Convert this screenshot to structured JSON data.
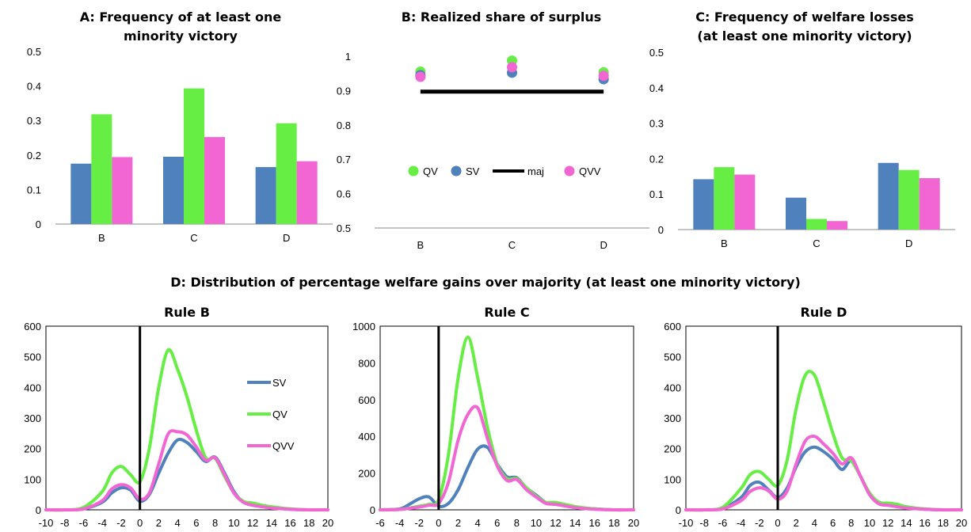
{
  "figure_title": "D: Distribution of percentage welfare gains over majority (at least one minority victory)",
  "colors": {
    "SV": "#4F81BD",
    "QV": "#66EE44",
    "QVV": "#F266D4",
    "maj": "#000000"
  },
  "chart_data": [
    {
      "id": "A",
      "type": "bar",
      "title_lines": [
        "A: Frequency of at least one",
        "minority victory"
      ],
      "categories": [
        "B",
        "C",
        "D"
      ],
      "series": [
        {
          "key": "SV",
          "values": [
            0.175,
            0.195,
            0.165
          ]
        },
        {
          "key": "QV",
          "values": [
            0.318,
            0.393,
            0.292
          ]
        },
        {
          "key": "QVV",
          "values": [
            0.194,
            0.252,
            0.182
          ]
        }
      ],
      "ylim": [
        0,
        0.5
      ],
      "yticks": [
        "0",
        "0.1",
        "0.2",
        "0.3",
        "0.4",
        "0.5"
      ],
      "grid": false
    },
    {
      "id": "B",
      "type": "scatter",
      "title_lines": [
        "B: Realized share of surplus"
      ],
      "categories": [
        "B",
        "C",
        "D"
      ],
      "series": [
        {
          "key": "QV",
          "name": "QV",
          "values": [
            0.955,
            0.987,
            0.953
          ]
        },
        {
          "key": "SV",
          "name": "SV",
          "values": [
            0.945,
            0.952,
            0.933
          ]
        },
        {
          "key": "QVV",
          "name": "QVV",
          "values": [
            0.94,
            0.968,
            0.943
          ]
        }
      ],
      "line_series": {
        "key": "maj",
        "name": "maj",
        "values": [
          0.897,
          0.897,
          0.897
        ]
      },
      "ylim": [
        0.5,
        1
      ],
      "yticks": [
        "0.5",
        "0.6",
        "0.7",
        "0.8",
        "0.9",
        "1"
      ],
      "legend_position": "center"
    },
    {
      "id": "C",
      "type": "bar",
      "title_lines": [
        "C: Frequency of welfare losses",
        "(at least one minority victory)"
      ],
      "categories": [
        "B",
        "C",
        "D"
      ],
      "series": [
        {
          "key": "SV",
          "values": [
            0.142,
            0.09,
            0.188
          ]
        },
        {
          "key": "QV",
          "values": [
            0.176,
            0.03,
            0.168
          ]
        },
        {
          "key": "QVV",
          "values": [
            0.155,
            0.024,
            0.145
          ]
        }
      ],
      "ylim": [
        0,
        0.5
      ],
      "yticks": [
        "0",
        "0.1",
        "0.2",
        "0.3",
        "0.4",
        "0.5"
      ],
      "grid": false
    },
    {
      "id": "D-B",
      "type": "line",
      "title_lines": [
        "Rule B"
      ],
      "xlim": [
        -10,
        20
      ],
      "xticks": [
        "-10",
        "-8",
        "-6",
        "-4",
        "-2",
        "0",
        "2",
        "4",
        "6",
        "8",
        "10",
        "12",
        "14",
        "16",
        "18",
        "20"
      ],
      "ylim": [
        0,
        600
      ],
      "yticks": [
        "0",
        "100",
        "200",
        "300",
        "400",
        "500",
        "600"
      ],
      "vline_x": 0,
      "legend_position": "right-center",
      "series": [
        {
          "key": "SV",
          "name": "SV",
          "x": [
            -10,
            -8,
            -6,
            -4,
            -3,
            -2,
            -1,
            0,
            1,
            2,
            3,
            4,
            5,
            6,
            7,
            8,
            9,
            10,
            11,
            12,
            13,
            14,
            16,
            18,
            20
          ],
          "y": [
            0,
            0,
            3,
            25,
            55,
            72,
            65,
            28,
            50,
            120,
            185,
            228,
            220,
            190,
            158,
            172,
            120,
            60,
            25,
            15,
            12,
            8,
            2,
            0,
            0
          ]
        },
        {
          "key": "QV",
          "name": "QV",
          "x": [
            -10,
            -8,
            -6,
            -4,
            -3,
            -2,
            -1,
            0,
            1,
            2,
            3,
            4,
            5,
            6,
            7,
            8,
            9,
            10,
            11,
            12,
            13,
            14,
            16,
            18,
            20
          ],
          "y": [
            0,
            0,
            8,
            60,
            120,
            142,
            115,
            92,
            200,
            400,
            522,
            460,
            370,
            260,
            170,
            168,
            110,
            55,
            28,
            22,
            15,
            10,
            3,
            0,
            0
          ]
        },
        {
          "key": "QVV",
          "name": "QVV",
          "x": [
            -10,
            -8,
            -6,
            -4,
            -3,
            -2,
            -1,
            0,
            1,
            2,
            3,
            4,
            5,
            6,
            7,
            8,
            9,
            10,
            11,
            12,
            13,
            14,
            16,
            18,
            20
          ],
          "y": [
            0,
            0,
            3,
            30,
            68,
            82,
            72,
            35,
            55,
            150,
            248,
            255,
            245,
            205,
            162,
            170,
            115,
            55,
            25,
            15,
            10,
            6,
            2,
            0,
            0
          ]
        }
      ]
    },
    {
      "id": "D-C",
      "type": "line",
      "title_lines": [
        "Rule C"
      ],
      "xlim": [
        -6,
        20
      ],
      "xticks": [
        "-6",
        "-4",
        "-2",
        "0",
        "2",
        "4",
        "6",
        "8",
        "10",
        "12",
        "14",
        "16",
        "18",
        "20"
      ],
      "ylim": [
        0,
        1000
      ],
      "yticks": [
        "0",
        "200",
        "400",
        "600",
        "800",
        "1000"
      ],
      "vline_x": 0,
      "series": [
        {
          "key": "SV",
          "name": "SV",
          "x": [
            -6,
            -4,
            -3,
            -2,
            -1,
            0,
            1,
            2,
            3,
            4,
            5,
            6,
            7,
            8,
            9,
            10,
            11,
            12,
            14,
            16,
            18,
            20
          ],
          "y": [
            0,
            5,
            30,
            60,
            70,
            20,
            35,
            110,
            230,
            330,
            340,
            250,
            180,
            175,
            120,
            80,
            40,
            30,
            15,
            5,
            0,
            0
          ]
        },
        {
          "key": "QV",
          "name": "QV",
          "x": [
            -6,
            -4,
            -3,
            -2,
            -1,
            0,
            1,
            2,
            3,
            4,
            5,
            6,
            7,
            8,
            9,
            10,
            11,
            12,
            14,
            16,
            18,
            20
          ],
          "y": [
            0,
            2,
            10,
            20,
            30,
            55,
            300,
            720,
            940,
            720,
            450,
            250,
            170,
            170,
            120,
            75,
            40,
            40,
            18,
            5,
            0,
            0
          ]
        },
        {
          "key": "QVV",
          "name": "QVV",
          "x": [
            -6,
            -4,
            -3,
            -2,
            -1,
            0,
            1,
            2,
            3,
            4,
            5,
            6,
            7,
            8,
            9,
            10,
            11,
            12,
            14,
            16,
            18,
            20
          ],
          "y": [
            0,
            2,
            8,
            15,
            25,
            35,
            150,
            380,
            520,
            555,
            390,
            240,
            160,
            165,
            110,
            70,
            35,
            30,
            12,
            3,
            0,
            0
          ]
        }
      ]
    },
    {
      "id": "D-D",
      "type": "line",
      "title_lines": [
        "Rule D"
      ],
      "xlim": [
        -10,
        20
      ],
      "xticks": [
        "-10",
        "-8",
        "-6",
        "-4",
        "-2",
        "0",
        "2",
        "4",
        "6",
        "8",
        "10",
        "12",
        "14",
        "16",
        "18",
        "20"
      ],
      "ylim": [
        0,
        600
      ],
      "yticks": [
        "0",
        "100",
        "200",
        "300",
        "400",
        "500",
        "600"
      ],
      "vline_x": 0,
      "series": [
        {
          "key": "SV",
          "name": "SV",
          "x": [
            -10,
            -8,
            -6,
            -4,
            -3,
            -2,
            -1,
            0,
            1,
            2,
            3,
            4,
            5,
            6,
            7,
            8,
            9,
            10,
            11,
            12,
            13,
            14,
            16,
            18,
            20
          ],
          "y": [
            0,
            0,
            5,
            40,
            80,
            90,
            65,
            40,
            70,
            140,
            190,
            205,
            190,
            165,
            132,
            160,
            110,
            50,
            20,
            15,
            12,
            8,
            2,
            0,
            0
          ]
        },
        {
          "key": "QV",
          "name": "QV",
          "x": [
            -10,
            -8,
            -6,
            -4,
            -3,
            -2,
            -1,
            0,
            1,
            2,
            3,
            4,
            5,
            6,
            7,
            8,
            9,
            10,
            11,
            12,
            13,
            14,
            16,
            18,
            20
          ],
          "y": [
            0,
            0,
            8,
            70,
            115,
            125,
            100,
            80,
            160,
            330,
            440,
            440,
            350,
            250,
            170,
            160,
            110,
            55,
            25,
            22,
            18,
            10,
            3,
            0,
            0
          ]
        },
        {
          "key": "QVV",
          "name": "QVV",
          "x": [
            -10,
            -8,
            -6,
            -4,
            -3,
            -2,
            -1,
            0,
            1,
            2,
            3,
            4,
            5,
            6,
            7,
            8,
            9,
            10,
            11,
            12,
            13,
            14,
            16,
            18,
            20
          ],
          "y": [
            0,
            0,
            3,
            30,
            60,
            72,
            62,
            35,
            60,
            150,
            225,
            240,
            215,
            185,
            150,
            170,
            110,
            50,
            20,
            15,
            10,
            6,
            2,
            0,
            0
          ]
        }
      ]
    }
  ]
}
